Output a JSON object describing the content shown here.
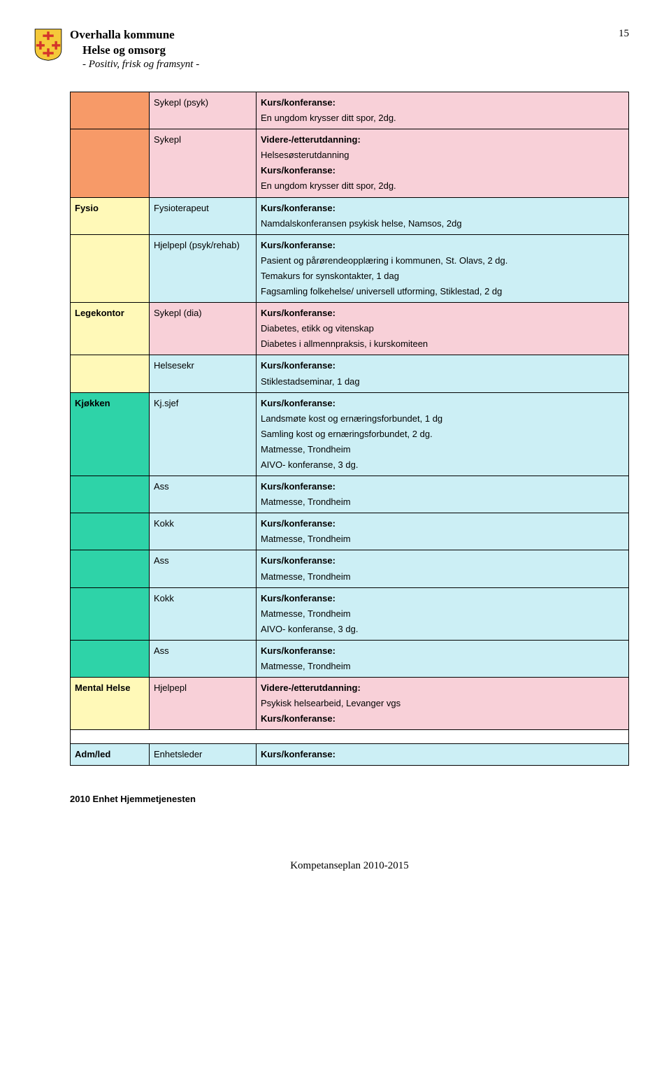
{
  "colors": {
    "pink": "#f8d0d8",
    "lightblue": "#cceff5",
    "yellow": "#fff9b8",
    "teal": "#2ed3a8",
    "orange": "#f79a68",
    "white": "#ffffff",
    "logo_red": "#d4342a",
    "logo_yellow": "#f5c93a"
  },
  "header": {
    "title": "Overhalla kommune",
    "sub": "Helse og omsorg",
    "motto": "- Positiv, frisk og framsynt -",
    "page_number": "15"
  },
  "rows": [
    {
      "col1": "",
      "col2": "Sykepl (psyk)",
      "col3": "Kurs/konferanse:\nEn ungdom krysser ditt spor, 2dg.",
      "c1_bg": "orange",
      "c2_bg": "pink",
      "c3_bg": "pink"
    },
    {
      "col1": "",
      "col2": "Sykepl",
      "col3": "Videre-/etterutdanning:\nHelsesøsterutdanning\nKurs/konferanse:\nEn ungdom krysser ditt spor, 2dg.",
      "c1_bg": "orange",
      "c2_bg": "pink",
      "c3_bg": "pink"
    },
    {
      "col1": "Fysio",
      "col2": "Fysioterapeut",
      "col3": "Kurs/konferanse:\nNamdalskonferansen psykisk helse, Namsos, 2dg",
      "c1_bg": "yellow",
      "c2_bg": "lightblue",
      "c3_bg": "lightblue"
    },
    {
      "col1": "",
      "col2": "Hjelpepl (psyk/rehab)",
      "col3": "Kurs/konferanse:\nPasient og pårørendeopplæring i kommunen, St. Olavs, 2 dg.\nTemakurs for synskontakter, 1 dag\nFagsamling folkehelse/ universell utforming, Stiklestad,  2 dg",
      "c1_bg": "yellow",
      "c2_bg": "lightblue",
      "c3_bg": "lightblue"
    },
    {
      "col1": "Legekontor",
      "col2": "Sykepl (dia)",
      "col3": "Kurs/konferanse:\nDiabetes, etikk og vitenskap\nDiabetes i allmennpraksis, i kurskomiteen",
      "c1_bg": "yellow",
      "c2_bg": "pink",
      "c3_bg": "pink"
    },
    {
      "col1": "",
      "col2": "Helsesekr",
      "col3": "Kurs/konferanse:\nStiklestadseminar, 1 dag",
      "c1_bg": "yellow",
      "c2_bg": "lightblue",
      "c3_bg": "lightblue"
    },
    {
      "col1": "Kjøkken",
      "col2": "Kj.sjef",
      "col3": "Kurs/konferanse:\nLandsmøte kost og ernæringsforbundet, 1 dg\nSamling kost og ernæringsforbundet, 2 dg.\nMatmesse, Trondheim\nAIVO- konferanse, 3 dg.",
      "c1_bg": "teal",
      "c2_bg": "lightblue",
      "c3_bg": "lightblue"
    },
    {
      "col1": "",
      "col2": "Ass",
      "col3": "Kurs/konferanse:\nMatmesse, Trondheim",
      "c1_bg": "teal",
      "c2_bg": "lightblue",
      "c3_bg": "lightblue"
    },
    {
      "col1": "",
      "col2": "Kokk",
      "col3": "Kurs/konferanse:\nMatmesse, Trondheim",
      "c1_bg": "teal",
      "c2_bg": "lightblue",
      "c3_bg": "lightblue"
    },
    {
      "col1": "",
      "col2": "Ass",
      "col3": "Kurs/konferanse:\nMatmesse, Trondheim",
      "c1_bg": "teal",
      "c2_bg": "lightblue",
      "c3_bg": "lightblue"
    },
    {
      "col1": "",
      "col2": "Kokk",
      "col3": "Kurs/konferanse:\nMatmesse, Trondheim\nAIVO- konferanse, 3 dg.",
      "c1_bg": "teal",
      "c2_bg": "lightblue",
      "c3_bg": "lightblue"
    },
    {
      "col1": "",
      "col2": "Ass",
      "col3": "Kurs/konferanse:\nMatmesse, Trondheim",
      "c1_bg": "teal",
      "c2_bg": "lightblue",
      "c3_bg": "lightblue"
    },
    {
      "col1": "Mental Helse",
      "col2": "Hjelpepl",
      "col3": "Videre-/etterutdanning:\nPsykisk helsearbeid, Levanger vgs\nKurs/konferanse:",
      "c1_bg": "yellow",
      "c2_bg": "pink",
      "c3_bg": "pink"
    },
    {
      "gap": true
    },
    {
      "col1": "Adm/led",
      "col2": "Enhetsleder",
      "col3": "Kurs/konferanse:",
      "c1_bg": "lightblue",
      "c2_bg": "lightblue",
      "c3_bg": "lightblue"
    }
  ],
  "note": "2010      Enhet Hjemmetjenesten",
  "footer": "Kompetanseplan 2010-2015"
}
